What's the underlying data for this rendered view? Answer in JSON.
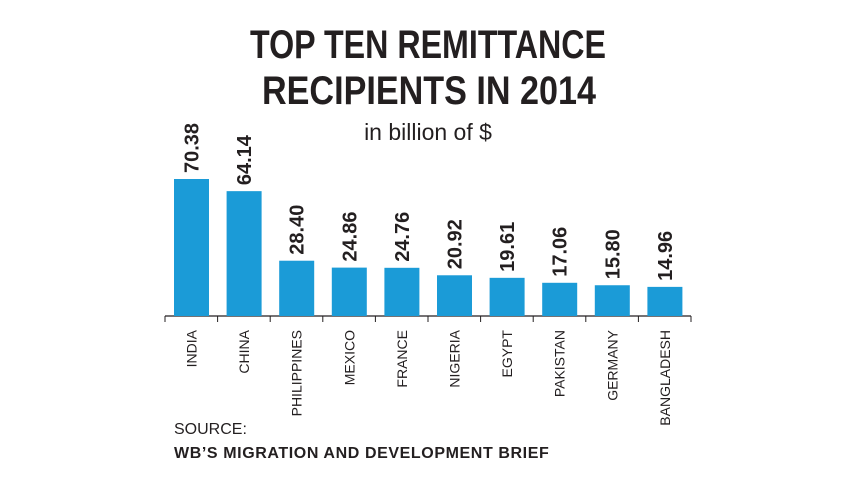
{
  "chart_data": {
    "type": "bar",
    "title": [
      "TOP TEN REMITTANCE",
      "RECIPIENTS IN 2014"
    ],
    "subtitle": "in billion of $",
    "categories": [
      "INDIA",
      "CHINA",
      "PHILIPPINES",
      "MEXICO",
      "FRANCE",
      "NIGERIA",
      "EGYPT",
      "PAKISTAN",
      "GERMANY",
      "BANGLADESH"
    ],
    "values": [
      70.38,
      64.14,
      28.4,
      24.86,
      24.76,
      20.92,
      19.61,
      17.06,
      15.8,
      14.96
    ],
    "value_labels": [
      "70.38",
      "64.14",
      "28.40",
      "24.86",
      "24.76",
      "20.92",
      "19.61",
      "17.06",
      "15.80",
      "14.96"
    ],
    "color": "#1b9bd7",
    "source": {
      "label": "SOURCE:",
      "text": "WB’S MIGRATION AND DEVELOPMENT BRIEF"
    }
  }
}
